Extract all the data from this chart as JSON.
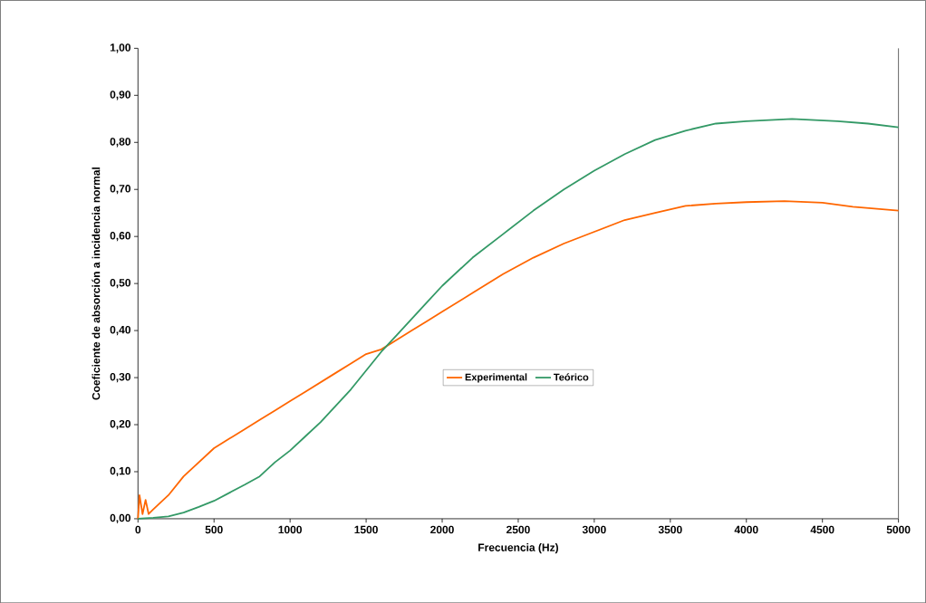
{
  "chart_data": {
    "type": "line",
    "xlabel": "Frecuencia (Hz)",
    "ylabel": "Coeficiente de absorción a incidencia normal",
    "series": [
      {
        "name": "Experimental",
        "color": "#ff6600",
        "x": [
          0,
          10,
          30,
          50,
          70,
          100,
          200,
          300,
          400,
          500,
          600,
          700,
          800,
          900,
          1000,
          1100,
          1200,
          1300,
          1400,
          1500,
          1600,
          1700,
          1800,
          1900,
          2000,
          2200,
          2400,
          2600,
          2800,
          3000,
          3200,
          3400,
          3600,
          3800,
          4000,
          4250,
          4500,
          4700,
          5000
        ],
        "values": [
          0.0,
          0.05,
          0.01,
          0.04,
          0.01,
          0.02,
          0.05,
          0.09,
          0.12,
          0.15,
          0.17,
          0.19,
          0.21,
          0.23,
          0.25,
          0.27,
          0.29,
          0.31,
          0.33,
          0.35,
          0.36,
          0.38,
          0.4,
          0.42,
          0.44,
          0.48,
          0.52,
          0.555,
          0.585,
          0.61,
          0.635,
          0.65,
          0.665,
          0.67,
          0.673,
          0.675,
          0.672,
          0.663,
          0.655
        ]
      },
      {
        "name": "Teórico",
        "color": "#339966",
        "x": [
          0,
          100,
          200,
          300,
          400,
          500,
          600,
          700,
          800,
          900,
          1000,
          1100,
          1200,
          1300,
          1400,
          1500,
          1600,
          1700,
          1800,
          1900,
          2000,
          2200,
          2400,
          2600,
          2800,
          3000,
          3200,
          3400,
          3600,
          3800,
          4000,
          4300,
          4600,
          4800,
          5000
        ],
        "values": [
          0.0,
          0.002,
          0.005,
          0.013,
          0.025,
          0.038,
          0.055,
          0.072,
          0.09,
          0.12,
          0.145,
          0.175,
          0.205,
          0.24,
          0.275,
          0.315,
          0.355,
          0.39,
          0.425,
          0.46,
          0.495,
          0.555,
          0.605,
          0.655,
          0.7,
          0.74,
          0.775,
          0.805,
          0.825,
          0.84,
          0.845,
          0.85,
          0.845,
          0.84,
          0.832
        ]
      }
    ],
    "xlim": [
      0,
      5000
    ],
    "ylim": [
      0,
      1
    ],
    "xticks": [
      0,
      500,
      1000,
      1500,
      2000,
      2500,
      3000,
      3500,
      4000,
      4500,
      5000
    ],
    "yticks": [
      {
        "value": 0,
        "label": "0,00"
      },
      {
        "value": 0.1,
        "label": "0,10"
      },
      {
        "value": 0.2,
        "label": "0,20"
      },
      {
        "value": 0.3,
        "label": "0,30"
      },
      {
        "value": 0.4,
        "label": "0,40"
      },
      {
        "value": 0.5,
        "label": "0,50"
      },
      {
        "value": 0.6,
        "label": "0,60"
      },
      {
        "value": 0.7,
        "label": "0,70"
      },
      {
        "value": 0.8,
        "label": "0,80"
      },
      {
        "value": 0.9,
        "label": "0,90"
      },
      {
        "value": 1.0,
        "label": "1,00"
      }
    ],
    "grid": false,
    "legend": "center",
    "marker": "none",
    "line_style": "solid"
  }
}
